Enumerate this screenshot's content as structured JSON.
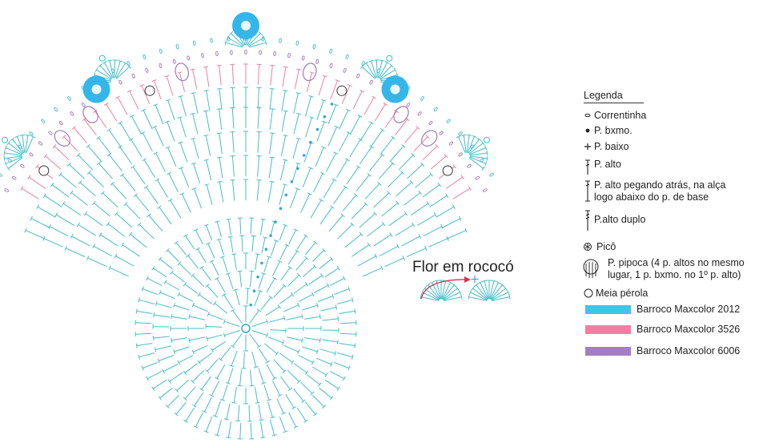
{
  "flower_title": "Flor em rococó",
  "legend": {
    "title": "Legenda",
    "items": [
      {
        "symbol": "chain-icon",
        "label": "Correntinha"
      },
      {
        "symbol": "slip-stitch-icon",
        "label": "P. bxmo."
      },
      {
        "symbol": "single-crochet-icon",
        "label": "P. baixo"
      },
      {
        "symbol": "double-crochet-icon",
        "label": "P. alto"
      },
      {
        "symbol": "back-loop-double-crochet-icon",
        "label": "P. alto pegando atrás, na alça",
        "label2": "logo abaixo do p. de base"
      },
      {
        "symbol": "treble-crochet-icon",
        "label": "P.alto duplo"
      },
      {
        "symbol": "picot-icon",
        "label": "Picô"
      },
      {
        "symbol": "popcorn-icon",
        "label": "P. pipoca (4 p. altos no mesmo",
        "label2": "lugar, 1 p. bxmo. no 1º p. alto)"
      },
      {
        "symbol": "half-pearl-icon",
        "label": "Meia pérola"
      }
    ],
    "colors": [
      {
        "label": "Barroco Maxcolor 2012",
        "color": "#3ec6e8"
      },
      {
        "label": "Barroco Maxcolor 3526",
        "color": "#f27ea3"
      },
      {
        "label": "Barroco Maxcolor 6006",
        "color": "#a77cc6"
      }
    ]
  },
  "colors": {
    "stitch": "#46bcc9",
    "stitch_blue": "#35a7dc",
    "pink": "#ec7fa0",
    "purple": "#a07ab8",
    "bead": "#35b6ea",
    "text": "#222222",
    "arrow": "#d6334d"
  }
}
